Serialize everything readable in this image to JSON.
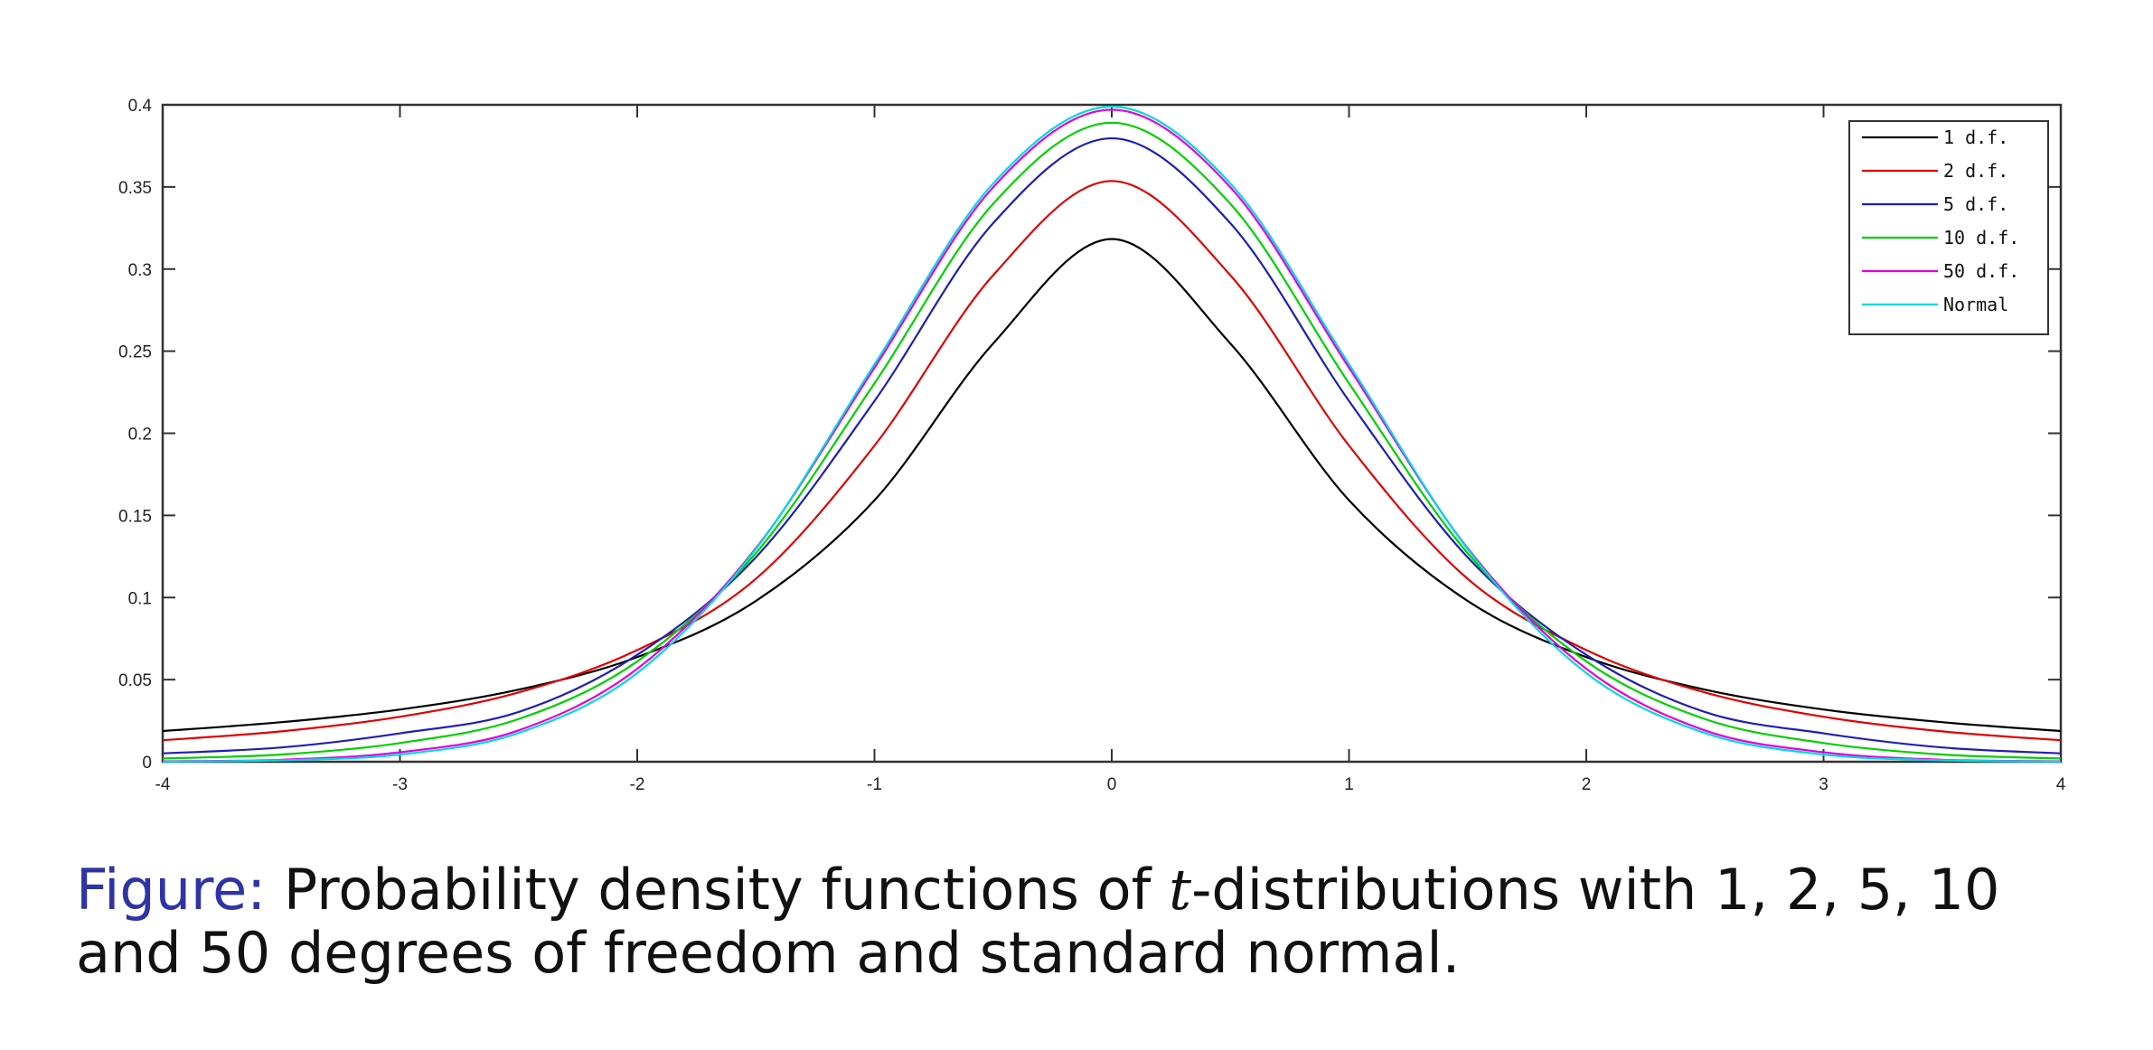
{
  "chart_data": {
    "type": "line",
    "xlim": [
      -4,
      4
    ],
    "ylim": [
      0,
      0.4
    ],
    "x_ticks": [
      {
        "value": -4,
        "label": "-4"
      },
      {
        "value": -3,
        "label": "-3"
      },
      {
        "value": -2,
        "label": "-2"
      },
      {
        "value": -1,
        "label": "-1"
      },
      {
        "value": 0,
        "label": "0"
      },
      {
        "value": 1,
        "label": "1"
      },
      {
        "value": 2,
        "label": "2"
      },
      {
        "value": 3,
        "label": "3"
      },
      {
        "value": 4,
        "label": "4"
      }
    ],
    "y_ticks": [
      {
        "value": 0,
        "label": "0"
      },
      {
        "value": 0.05,
        "label": "0.05"
      },
      {
        "value": 0.1,
        "label": "0.1"
      },
      {
        "value": 0.15,
        "label": "0.15"
      },
      {
        "value": 0.2,
        "label": "0.2"
      },
      {
        "value": 0.25,
        "label": "0.25"
      },
      {
        "value": 0.3,
        "label": "0.3"
      },
      {
        "value": 0.35,
        "label": "0.35"
      },
      {
        "value": 0.4,
        "label": "0.4"
      }
    ],
    "grid": false,
    "legend_position": "top-right",
    "x": [
      -4,
      -3.5,
      -3,
      -2.5,
      -2,
      -1.5,
      -1,
      -0.5,
      0,
      0.5,
      1,
      1.5,
      2,
      2.5,
      3,
      3.5,
      4
    ],
    "series": [
      {
        "name": "1 d.f.",
        "color": "#000000",
        "values": [
          0.0187,
          0.0241,
          0.0318,
          0.0439,
          0.0637,
          0.0979,
          0.1592,
          0.2546,
          0.3183,
          0.2546,
          0.1592,
          0.0979,
          0.0637,
          0.0439,
          0.0318,
          0.0241,
          0.0187
        ]
      },
      {
        "name": "2 d.f.",
        "color": "#e00000",
        "values": [
          0.0131,
          0.0185,
          0.0274,
          0.0422,
          0.068,
          0.1114,
          0.1925,
          0.2962,
          0.3536,
          0.2962,
          0.1925,
          0.1114,
          0.068,
          0.0422,
          0.0274,
          0.0185,
          0.0131
        ]
      },
      {
        "name": "5 d.f.",
        "color": "#1f1fb4",
        "values": [
          0.0051,
          0.0087,
          0.0173,
          0.0303,
          0.0651,
          0.1245,
          0.2197,
          0.3279,
          0.3796,
          0.3279,
          0.2197,
          0.1245,
          0.0651,
          0.0303,
          0.0173,
          0.0087,
          0.0051
        ]
      },
      {
        "name": "10 d.f.",
        "color": "#00d000",
        "values": [
          0.002,
          0.0044,
          0.0114,
          0.026,
          0.0611,
          0.127,
          0.2304,
          0.3397,
          0.3891,
          0.3397,
          0.2304,
          0.127,
          0.0611,
          0.026,
          0.0114,
          0.0044,
          0.002
        ]
      },
      {
        "name": "50 d.f.",
        "color": "#e000e0",
        "values": [
          0.0003,
          0.0012,
          0.0058,
          0.0191,
          0.0566,
          0.13,
          0.2399,
          0.3498,
          0.397,
          0.3498,
          0.2399,
          0.13,
          0.0566,
          0.0191,
          0.0058,
          0.0012,
          0.0003
        ]
      },
      {
        "name": "Normal",
        "color": "#00d8e0",
        "values": [
          0.0001,
          0.0009,
          0.0044,
          0.0175,
          0.054,
          0.1295,
          0.242,
          0.3521,
          0.3989,
          0.3521,
          0.242,
          0.1295,
          0.054,
          0.0175,
          0.0044,
          0.0009,
          0.0001
        ]
      }
    ]
  },
  "caption": {
    "label": "Figure:",
    "text_before": " Probability density functions of ",
    "variable": "t",
    "text_after": "-distributions with 1, 2, 5, 10 and 50 degrees of freedom and standard normal."
  }
}
